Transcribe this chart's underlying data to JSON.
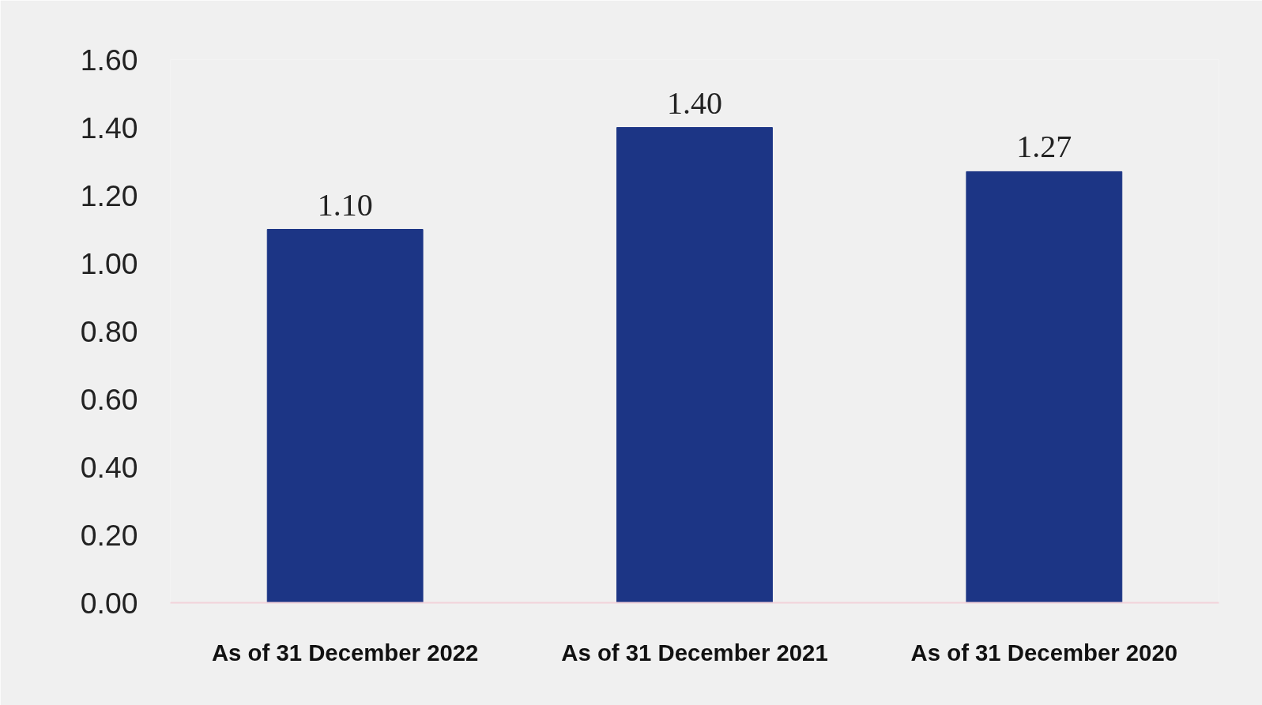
{
  "chart_data": {
    "type": "bar",
    "categories": [
      "As of 31 December 2022",
      "As of 31 December 2021",
      "As of 31 December 2020"
    ],
    "values": [
      1.1,
      1.4,
      1.27
    ],
    "value_labels": [
      "1.10",
      "1.40",
      "1.27"
    ],
    "color": "#1c3585",
    "ylim": [
      0,
      1.6
    ],
    "yticks": [
      {
        "value": 0,
        "label": "0.00"
      },
      {
        "value": 0.2,
        "label": "0.20"
      },
      {
        "value": 0.4,
        "label": "0.40"
      },
      {
        "value": 0.6,
        "label": "0.60"
      },
      {
        "value": 0.8,
        "label": "0.80"
      },
      {
        "value": 1.0,
        "label": "1.00"
      },
      {
        "value": 1.2,
        "label": "1.20"
      },
      {
        "value": 1.4,
        "label": "1.40"
      },
      {
        "value": 1.6,
        "label": "1.60"
      }
    ],
    "grid": false
  }
}
